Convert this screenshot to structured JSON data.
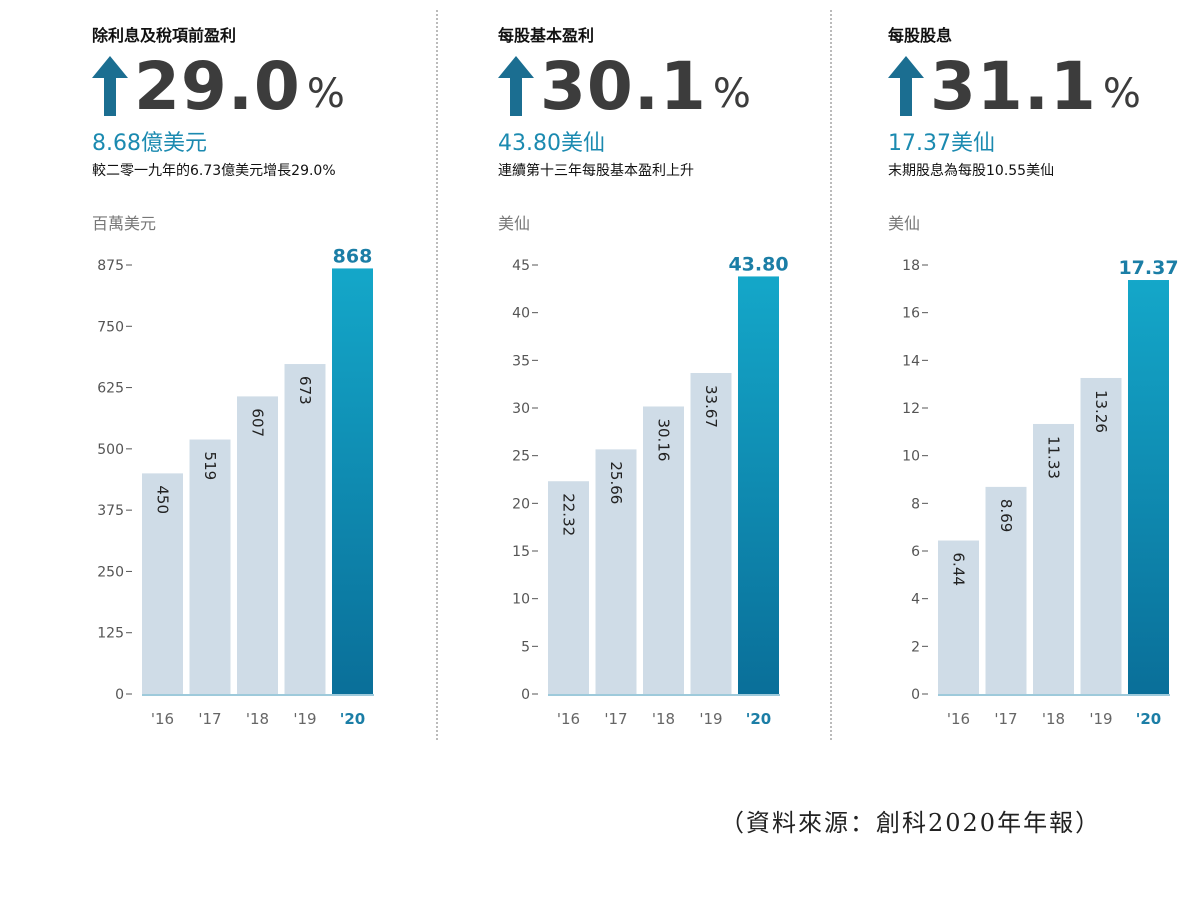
{
  "panels": [
    {
      "title": "除利息及稅項前盈利",
      "big_number": "29.0",
      "percent_sign": "%",
      "sub_value": "8.68億美元",
      "note": "較二零一九年的6.73億美元增長29.0%"
    },
    {
      "title": "每股基本盈利",
      "big_number": "30.1",
      "percent_sign": "%",
      "sub_value": "43.80美仙",
      "note": "連續第十三年每股基本盈利上升"
    },
    {
      "title": "每股股息",
      "big_number": "31.1",
      "percent_sign": "%",
      "sub_value": "17.37美仙",
      "note": "末期股息為每股10.55美仙"
    }
  ],
  "source": "（資料來源：創科2020年年報）",
  "colors": {
    "bar": "#cfdce7",
    "highlight_top": "#14a7c9",
    "highlight_bottom": "#0a6f99",
    "highlight_label": "#1b7ea6",
    "arrow": "#1b6e91",
    "axis": "#555555"
  },
  "icons": {
    "up_arrow": "up-arrow-icon"
  },
  "chart_data": [
    {
      "type": "bar",
      "title": "除利息及稅項前盈利",
      "ylabel": "百萬美元",
      "categories": [
        "'16",
        "'17",
        "'18",
        "'19",
        "'20"
      ],
      "values": [
        450,
        519,
        607,
        673,
        868
      ],
      "value_labels": [
        "450",
        "519",
        "607",
        "673",
        "868"
      ],
      "highlight_index": 4,
      "ylim": [
        0,
        875
      ],
      "yticks": [
        0,
        125,
        250,
        375,
        500,
        625,
        750,
        875
      ],
      "ytick_labels": [
        "0",
        "125",
        "250",
        "375",
        "500",
        "625",
        "750",
        "875"
      ]
    },
    {
      "type": "bar",
      "title": "每股基本盈利",
      "ylabel": "美仙",
      "categories": [
        "'16",
        "'17",
        "'18",
        "'19",
        "'20"
      ],
      "values": [
        22.32,
        25.66,
        30.16,
        33.67,
        43.8
      ],
      "value_labels": [
        "22.32",
        "25.66",
        "30.16",
        "33.67",
        "43.80"
      ],
      "highlight_index": 4,
      "ylim": [
        0,
        45
      ],
      "yticks": [
        0,
        5,
        10,
        15,
        20,
        25,
        30,
        35,
        40,
        45
      ],
      "ytick_labels": [
        "0",
        "5",
        "10",
        "15",
        "20",
        "25",
        "30",
        "35",
        "40",
        "45"
      ]
    },
    {
      "type": "bar",
      "title": "每股股息",
      "ylabel": "美仙",
      "categories": [
        "'16",
        "'17",
        "'18",
        "'19",
        "'20"
      ],
      "values": [
        6.44,
        8.69,
        11.33,
        13.26,
        17.37
      ],
      "value_labels": [
        "6.44",
        "8.69",
        "11.33",
        "13.26",
        "17.37"
      ],
      "highlight_index": 4,
      "ylim": [
        0,
        18
      ],
      "yticks": [
        0,
        2,
        4,
        6,
        8,
        10,
        12,
        14,
        16,
        18
      ],
      "ytick_labels": [
        "0",
        "2",
        "4",
        "6",
        "8",
        "10",
        "12",
        "14",
        "16",
        "18"
      ]
    }
  ]
}
